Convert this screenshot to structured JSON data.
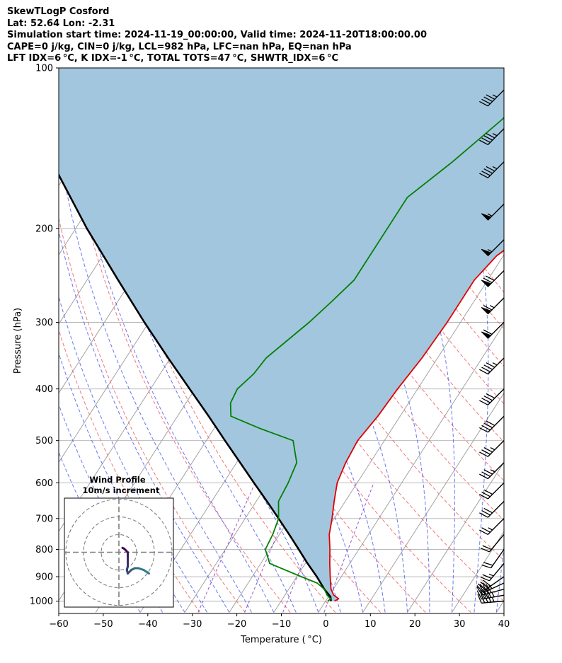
{
  "header": {
    "line1": "SkewTLogP Cosford",
    "line2": "Lat: 52.64   Lon: -2.31",
    "line3": "Simulation start time: 2024-11-19_00:00:00, Valid time: 2024-11-20T18:00:00.00",
    "line4": "CAPE=0 j/kg, CIN=0 j/kg, LCL=982 hPa, LFC=nan hPa, EQ=nan hPa",
    "line5": "LFT IDX=6 °C, K IDX=-1 °C, TOTAL TOTS=47 °C, SHWTR_IDX=6 °C"
  },
  "colors": {
    "temperature": "#e00000",
    "dewpoint": "#008000",
    "parcel": "#000000",
    "cape_fill": "#a3c6df",
    "dry_adiabat": "#f06060",
    "moist_adiabat": "#5060f0",
    "mixing_ratio": "#8030c0",
    "isotherm": "#9a9a9a",
    "hodo_low": "#2d7f8e",
    "hodo_high": "#440154"
  },
  "chart_data": {
    "type": "skew-t log-p",
    "xlabel": "Temperature ( °C)",
    "ylabel": "Pressure (hPa)",
    "xlim": [
      -60,
      40
    ],
    "ylim": [
      1050,
      100
    ],
    "x_ticks": [
      "−60",
      "−50",
      "−40",
      "−30",
      "−20",
      "−10",
      "0",
      "10",
      "20",
      "30",
      "40"
    ],
    "y_ticks": [
      "100",
      "200",
      "300",
      "400",
      "500",
      "600",
      "700",
      "800",
      "900",
      "1000"
    ],
    "grid": true,
    "temperature_profile": [
      [
        1000,
        2.0
      ],
      [
        990,
        2.6
      ],
      [
        975,
        1.0
      ],
      [
        950,
        -0.5
      ],
      [
        925,
        -1.5
      ],
      [
        900,
        -2.5
      ],
      [
        850,
        -4.5
      ],
      [
        800,
        -6.5
      ],
      [
        750,
        -8.8
      ],
      [
        700,
        -10.5
      ],
      [
        650,
        -12.5
      ],
      [
        600,
        -14.5
      ],
      [
        550,
        -15.5
      ],
      [
        500,
        -16.0
      ],
      [
        450,
        -15.0
      ],
      [
        400,
        -14.5
      ],
      [
        350,
        -13.5
      ],
      [
        300,
        -13.0
      ],
      [
        250,
        -13.0
      ],
      [
        225,
        -11.5
      ],
      [
        200,
        -7.0
      ],
      [
        175,
        -0.5
      ],
      [
        150,
        5.0
      ],
      [
        125,
        10.0
      ],
      [
        100,
        14.0
      ]
    ],
    "dewpoint_profile": [
      [
        1000,
        0.5
      ],
      [
        990,
        0.8
      ],
      [
        975,
        -0.5
      ],
      [
        950,
        -2.0
      ],
      [
        925,
        -4.5
      ],
      [
        900,
        -9.0
      ],
      [
        850,
        -18.0
      ],
      [
        800,
        -21.0
      ],
      [
        750,
        -21.5
      ],
      [
        700,
        -22.5
      ],
      [
        650,
        -25.0
      ],
      [
        600,
        -25.5
      ],
      [
        550,
        -26.5
      ],
      [
        500,
        -30.5
      ],
      [
        475,
        -39.5
      ],
      [
        450,
        -48.0
      ],
      [
        425,
        -50.0
      ],
      [
        400,
        -50.5
      ],
      [
        375,
        -49.0
      ],
      [
        350,
        -48.5
      ],
      [
        300,
        -44.0
      ],
      [
        275,
        -42.0
      ],
      [
        250,
        -40.0
      ],
      [
        200,
        -40.0
      ],
      [
        175,
        -40.0
      ],
      [
        150,
        -35.0
      ],
      [
        125,
        -30.0
      ],
      [
        100,
        -25.0
      ]
    ],
    "parcel_profile": [
      [
        1000,
        1.2
      ],
      [
        982,
        0.5
      ],
      [
        950,
        -2.0
      ],
      [
        900,
        -5.5
      ],
      [
        850,
        -9.5
      ],
      [
        800,
        -13.5
      ],
      [
        750,
        -17.8
      ],
      [
        700,
        -22.5
      ],
      [
        650,
        -27.6
      ],
      [
        600,
        -33.2
      ],
      [
        550,
        -39.2
      ],
      [
        500,
        -45.8
      ],
      [
        450,
        -53.0
      ],
      [
        400,
        -61.2
      ],
      [
        350,
        -70.5
      ],
      [
        300,
        -81.0
      ],
      [
        250,
        -93.0
      ],
      [
        200,
        -107.5
      ],
      [
        150,
        -125.0
      ],
      [
        100,
        -148.0
      ]
    ],
    "wind_barbs": [
      {
        "p": 1000,
        "speed_kt": 45,
        "dir_deg": 265
      },
      {
        "p": 975,
        "speed_kt": 45,
        "dir_deg": 260
      },
      {
        "p": 950,
        "speed_kt": 40,
        "dir_deg": 255
      },
      {
        "p": 925,
        "speed_kt": 35,
        "dir_deg": 245
      },
      {
        "p": 900,
        "speed_kt": 30,
        "dir_deg": 235
      },
      {
        "p": 850,
        "speed_kt": 25,
        "dir_deg": 220
      },
      {
        "p": 800,
        "speed_kt": 20,
        "dir_deg": 215
      },
      {
        "p": 750,
        "speed_kt": 20,
        "dir_deg": 220
      },
      {
        "p": 700,
        "speed_kt": 25,
        "dir_deg": 225
      },
      {
        "p": 650,
        "speed_kt": 30,
        "dir_deg": 225
      },
      {
        "p": 600,
        "speed_kt": 30,
        "dir_deg": 225
      },
      {
        "p": 550,
        "speed_kt": 35,
        "dir_deg": 225
      },
      {
        "p": 500,
        "speed_kt": 35,
        "dir_deg": 225
      },
      {
        "p": 450,
        "speed_kt": 40,
        "dir_deg": 225
      },
      {
        "p": 400,
        "speed_kt": 40,
        "dir_deg": 225
      },
      {
        "p": 350,
        "speed_kt": 45,
        "dir_deg": 225
      },
      {
        "p": 300,
        "speed_kt": 60,
        "dir_deg": 225
      },
      {
        "p": 270,
        "speed_kt": 65,
        "dir_deg": 225
      },
      {
        "p": 240,
        "speed_kt": 70,
        "dir_deg": 225
      },
      {
        "p": 210,
        "speed_kt": 55,
        "dir_deg": 225
      },
      {
        "p": 180,
        "speed_kt": 55,
        "dir_deg": 225
      },
      {
        "p": 150,
        "speed_kt": 45,
        "dir_deg": 225
      },
      {
        "p": 130,
        "speed_kt": 45,
        "dir_deg": 225
      },
      {
        "p": 110,
        "speed_kt": 45,
        "dir_deg": 225
      }
    ],
    "hodograph": {
      "title_line1": "Wind Profile",
      "title_line2": "10m/s increment",
      "rings_ms": [
        10,
        20,
        30
      ],
      "points_uv": [
        [
          17,
          -12
        ],
        [
          14,
          -10
        ],
        [
          11,
          -9
        ],
        [
          9,
          -9
        ],
        [
          7,
          -10
        ],
        [
          6,
          -11
        ],
        [
          5,
          -12
        ],
        [
          4.5,
          -10
        ],
        [
          5,
          -8
        ],
        [
          5,
          -6
        ],
        [
          5,
          -4
        ],
        [
          5,
          -2
        ],
        [
          5,
          0
        ],
        [
          4,
          1
        ],
        [
          3,
          2
        ],
        [
          2,
          2.5
        ]
      ]
    }
  }
}
